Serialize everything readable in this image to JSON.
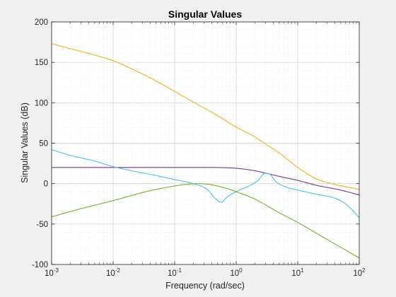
{
  "chart_data": {
    "type": "line",
    "title": "Singular Values",
    "xlabel": "Frequency (rad/sec)",
    "ylabel": "Singular Values (dB)",
    "xscale": "log",
    "xlim": [
      0.001,
      100
    ],
    "ylim": [
      -100,
      200
    ],
    "grid": "on (major and minor)",
    "x_ticks": [
      {
        "base": "10",
        "exp": "-3",
        "value": 0.001
      },
      {
        "base": "10",
        "exp": "-2",
        "value": 0.01
      },
      {
        "base": "10",
        "exp": "-1",
        "value": 0.1
      },
      {
        "base": "10",
        "exp": "0",
        "value": 1
      },
      {
        "base": "10",
        "exp": "1",
        "value": 10
      },
      {
        "base": "10",
        "exp": "2",
        "value": 100
      }
    ],
    "y_ticks": [
      {
        "label": "-100",
        "value": -100
      },
      {
        "label": "-50",
        "value": -50
      },
      {
        "label": "0",
        "value": 0
      },
      {
        "label": "50",
        "value": 50
      },
      {
        "label": "100",
        "value": 100
      },
      {
        "label": "150",
        "value": 150
      },
      {
        "label": "200",
        "value": 200
      }
    ],
    "series": [
      {
        "color": "#EDB120",
        "points": [
          [
            0.001,
            173
          ],
          [
            0.002,
            167
          ],
          [
            0.005,
            159
          ],
          [
            0.01,
            152
          ],
          [
            0.02,
            142
          ],
          [
            0.05,
            127
          ],
          [
            0.1,
            114
          ],
          [
            0.2,
            101
          ],
          [
            0.5,
            84
          ],
          [
            1,
            70
          ],
          [
            2,
            58
          ],
          [
            3,
            49
          ],
          [
            5,
            38
          ],
          [
            10,
            20
          ],
          [
            20,
            6
          ],
          [
            40,
            -1
          ],
          [
            100,
            -7
          ]
        ]
      },
      {
        "color": "#7E2F8E",
        "points": [
          [
            0.001,
            20
          ],
          [
            0.01,
            20
          ],
          [
            0.1,
            20
          ],
          [
            0.3,
            20
          ],
          [
            0.6,
            19.8
          ],
          [
            1,
            19
          ],
          [
            2,
            16
          ],
          [
            3,
            13
          ],
          [
            5,
            9
          ],
          [
            10,
            4
          ],
          [
            20,
            -2
          ],
          [
            50,
            -8
          ],
          [
            100,
            -14
          ]
        ]
      },
      {
        "color": "#4DBEEE",
        "points": [
          [
            0.001,
            42
          ],
          [
            0.002,
            35
          ],
          [
            0.005,
            28
          ],
          [
            0.01,
            21
          ],
          [
            0.02,
            16
          ],
          [
            0.05,
            10
          ],
          [
            0.1,
            5
          ],
          [
            0.2,
            0
          ],
          [
            0.35,
            -8
          ],
          [
            0.45,
            -18
          ],
          [
            0.58,
            -23
          ],
          [
            0.7,
            -17
          ],
          [
            1,
            -10
          ],
          [
            1.5,
            -4
          ],
          [
            2.2,
            3
          ],
          [
            3,
            13
          ],
          [
            3.6,
            11
          ],
          [
            4.5,
            2
          ],
          [
            7,
            -5
          ],
          [
            10,
            -8
          ],
          [
            20,
            -13
          ],
          [
            40,
            -18
          ],
          [
            60,
            -25
          ],
          [
            100,
            -42
          ]
        ]
      },
      {
        "color": "#77AC30",
        "points": [
          [
            0.001,
            -41
          ],
          [
            0.003,
            -31
          ],
          [
            0.01,
            -21
          ],
          [
            0.03,
            -11
          ],
          [
            0.07,
            -5
          ],
          [
            0.15,
            -1
          ],
          [
            0.25,
            0
          ],
          [
            0.4,
            -1.5
          ],
          [
            0.7,
            -6
          ],
          [
            1,
            -10
          ],
          [
            2,
            -19
          ],
          [
            5,
            -36
          ],
          [
            10,
            -48
          ],
          [
            30,
            -69
          ],
          [
            100,
            -92
          ]
        ]
      }
    ]
  }
}
